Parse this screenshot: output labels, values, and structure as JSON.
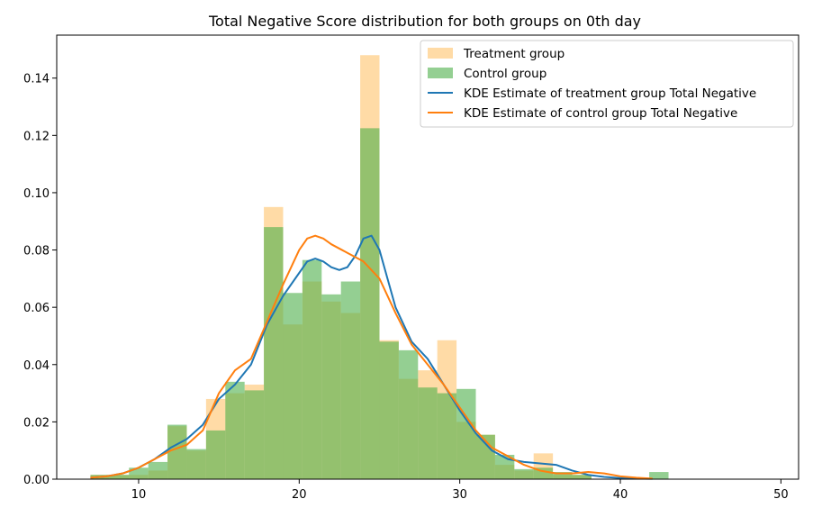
{
  "chart_data": {
    "type": "histogram",
    "title": "Total Negative Score distribution for both groups on 0th day",
    "xlabel": "",
    "ylabel": "",
    "xlim": [
      4.9,
      51.1
    ],
    "ylim": [
      0,
      0.155
    ],
    "xticks": [
      10,
      20,
      30,
      40,
      50
    ],
    "yticks": [
      0.0,
      0.02,
      0.04,
      0.06,
      0.08,
      0.1,
      0.12,
      0.14
    ],
    "legend_position": "top-right",
    "grid": false,
    "colors": {
      "treatment": "#ffb74d",
      "control": "#4daf4a",
      "kde_treatment": "#1f77b4",
      "kde_control": "#ff7f0e",
      "axes": "#000000"
    },
    "bin_edges": [
      7.0,
      8.2,
      9.4,
      10.6,
      11.8,
      13.0,
      14.2,
      15.4,
      16.6,
      17.8,
      19.0,
      20.2,
      21.4,
      22.6,
      23.8,
      25.0,
      26.2,
      27.4,
      28.6,
      29.8,
      31.0,
      32.2,
      33.4,
      34.6,
      35.8,
      37.0,
      38.2,
      39.4,
      40.6,
      41.8,
      43.0,
      44.2,
      45.4,
      46.6,
      47.8,
      49.0
    ],
    "series": [
      {
        "name": "Treatment group",
        "kind": "hist",
        "values": [
          0.0015,
          0.0015,
          0.0015,
          0.003,
          0.0185,
          0.01,
          0.028,
          0.03,
          0.033,
          0.095,
          0.054,
          0.069,
          0.062,
          0.058,
          0.148,
          0.0485,
          0.035,
          0.038,
          0.0485,
          0.02,
          0.0155,
          0.005,
          0.003,
          0.009,
          0.0015,
          0.0015,
          0.0,
          0.0,
          0.0,
          0.0,
          0.0,
          0.0,
          0.0,
          0.0,
          0.0
        ]
      },
      {
        "name": "Control group",
        "kind": "hist",
        "values": [
          0.0015,
          0.0015,
          0.004,
          0.006,
          0.019,
          0.0105,
          0.017,
          0.034,
          0.031,
          0.088,
          0.065,
          0.0765,
          0.0645,
          0.069,
          0.1225,
          0.048,
          0.045,
          0.032,
          0.03,
          0.0315,
          0.0155,
          0.0085,
          0.0035,
          0.004,
          0.0025,
          0.0015,
          0.0,
          0.0,
          0.0,
          0.0025,
          0.0,
          0.0,
          0.0,
          0.0,
          0.0
        ]
      },
      {
        "name": "KDE Estimate of treatment group Total Negative",
        "kind": "kde",
        "x": [
          7,
          8,
          9,
          10,
          11,
          12,
          13,
          14,
          15,
          16,
          17,
          18,
          19,
          20,
          20.5,
          21,
          21.5,
          22,
          22.5,
          23,
          23.5,
          24,
          24.5,
          25,
          25.5,
          26,
          27,
          28,
          29,
          30,
          31,
          32,
          33,
          34,
          35,
          36,
          37,
          38,
          39,
          40,
          41,
          42
        ],
        "y": [
          0.0005,
          0.001,
          0.002,
          0.004,
          0.007,
          0.011,
          0.014,
          0.019,
          0.028,
          0.033,
          0.04,
          0.054,
          0.064,
          0.072,
          0.076,
          0.077,
          0.076,
          0.074,
          0.073,
          0.074,
          0.078,
          0.084,
          0.085,
          0.08,
          0.07,
          0.06,
          0.048,
          0.042,
          0.033,
          0.024,
          0.016,
          0.01,
          0.007,
          0.006,
          0.0055,
          0.005,
          0.003,
          0.0015,
          0.0008,
          0.0004,
          0.0002,
          0.0001
        ]
      },
      {
        "name": "KDE Estimate of control group Total Negative",
        "kind": "kde",
        "x": [
          7,
          8,
          9,
          10,
          11,
          12,
          13,
          14,
          15,
          16,
          17,
          18,
          19,
          20,
          20.5,
          21,
          21.5,
          22,
          23,
          24,
          25,
          26,
          27,
          28,
          29,
          30,
          31,
          32,
          33,
          34,
          35,
          36,
          37,
          38,
          39,
          40,
          41,
          42
        ],
        "y": [
          0.0005,
          0.001,
          0.002,
          0.004,
          0.007,
          0.01,
          0.012,
          0.017,
          0.03,
          0.038,
          0.042,
          0.055,
          0.068,
          0.08,
          0.084,
          0.085,
          0.084,
          0.082,
          0.079,
          0.076,
          0.07,
          0.058,
          0.047,
          0.04,
          0.033,
          0.025,
          0.017,
          0.011,
          0.008,
          0.005,
          0.003,
          0.002,
          0.002,
          0.0025,
          0.002,
          0.001,
          0.0005,
          0.0002
        ]
      }
    ]
  }
}
